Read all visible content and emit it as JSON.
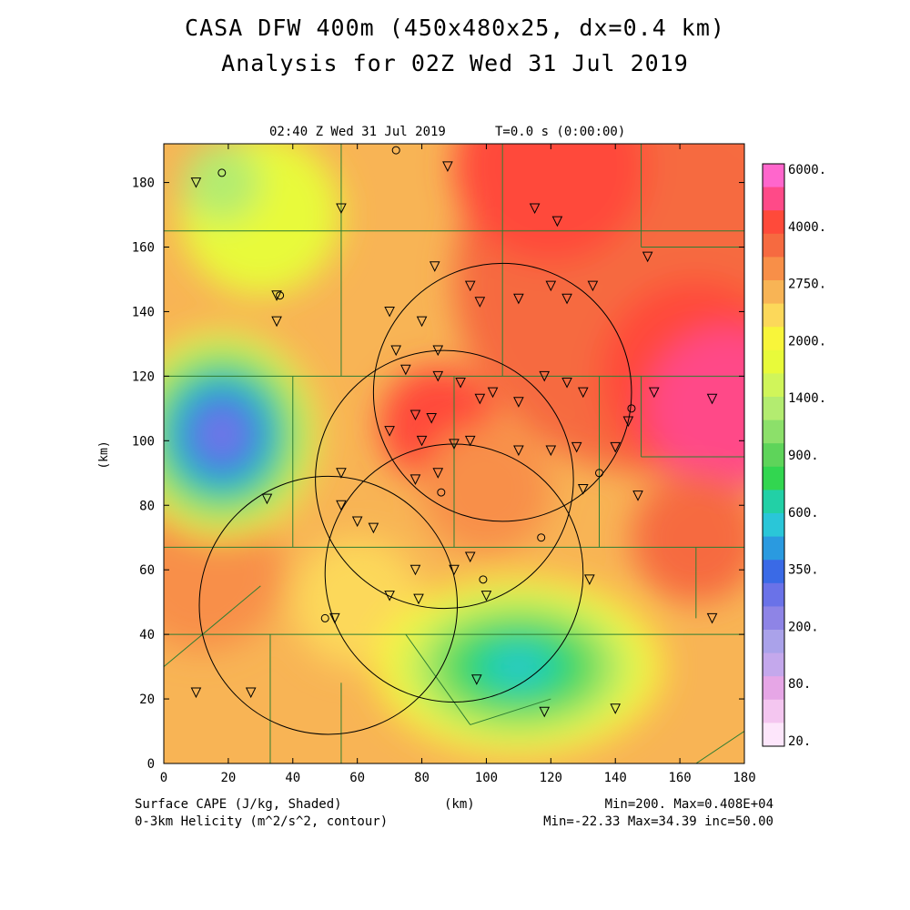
{
  "header": {
    "title_line1": "CASA DFW 400m (450x480x25, dx=0.4 km)",
    "title_line2": "Analysis for 02Z Wed 31 Jul 2019",
    "time_stamp": "02:40 Z Wed 31 Jul 2019",
    "model_time": "T=0.0 s (0:00:00)"
  },
  "footer": {
    "field1": "Surface CAPE (J/kg, Shaded)",
    "field2": "0-3km Helicity (m^2/s^2, contour)",
    "xunit": "(km)",
    "stats1": "Min=200. Max=0.408E+04",
    "stats2": "Min=-22.33 Max=34.39 inc=50.00"
  },
  "axes": {
    "x_ticks": [
      "0",
      "20",
      "40",
      "60",
      "80",
      "100",
      "120",
      "140",
      "160",
      "180"
    ],
    "y_ticks": [
      "0",
      "20",
      "40",
      "60",
      "80",
      "100",
      "120",
      "140",
      "160",
      "180"
    ],
    "ylabel": "(km)",
    "xlim": [
      0,
      180
    ],
    "ylim": [
      0,
      192
    ]
  },
  "colorbar": {
    "labels": [
      "6000.",
      "4000.",
      "2750.",
      "2000.",
      "1400.",
      "900.",
      "600.",
      "350.",
      "200.",
      "80.",
      "20."
    ],
    "colors": [
      "#ff66cc",
      "#ff4a88",
      "#ff4a3a",
      "#f66a40",
      "#f88f48",
      "#f8b455",
      "#fcd85a",
      "#f8f53a",
      "#e8fa3a",
      "#d0f55a",
      "#b3ec70",
      "#8ce06a",
      "#5ed45a",
      "#32d650",
      "#22d0a6",
      "#2ac6d8",
      "#2a9ae0",
      "#3a6ae6",
      "#6a72e8",
      "#8e84e6",
      "#aaa2ea",
      "#c4a8ec",
      "#e6a6e6",
      "#f4c6f0",
      "#fde6fb"
    ]
  },
  "radars": [
    {
      "cx": 105,
      "cy": 115
    },
    {
      "cx": 87,
      "cy": 88
    },
    {
      "cx": 90,
      "cy": 59
    },
    {
      "cx": 51,
      "cy": 49
    }
  ],
  "cape_field": {
    "base_color": "#f8b455",
    "blobs": [
      {
        "x": 150,
        "y": 150,
        "r": 60,
        "color": "#f66a40"
      },
      {
        "x": 165,
        "y": 120,
        "r": 30,
        "color": "#ff4a3a"
      },
      {
        "x": 175,
        "y": 110,
        "r": 25,
        "color": "#ff4a88"
      },
      {
        "x": 120,
        "y": 185,
        "r": 30,
        "color": "#ff4a3a"
      },
      {
        "x": 85,
        "y": 105,
        "r": 18,
        "color": "#ff4a3a"
      },
      {
        "x": 165,
        "y": 70,
        "r": 20,
        "color": "#f66a40"
      },
      {
        "x": 100,
        "y": 85,
        "r": 20,
        "color": "#f88f48"
      },
      {
        "x": 30,
        "y": 170,
        "r": 25,
        "color": "#e8fa3a"
      },
      {
        "x": 18,
        "y": 180,
        "r": 12,
        "color": "#b3ec70"
      },
      {
        "x": 12,
        "y": 60,
        "r": 25,
        "color": "#f88f48"
      },
      {
        "x": 60,
        "y": 50,
        "r": 20,
        "color": "#fcd85a"
      }
    ],
    "low_regions": [
      {
        "x": 110,
        "y": 30,
        "rx": 45,
        "ry": 28,
        "colors": [
          "#f8f53a",
          "#d0f55a",
          "#8ce06a",
          "#32d650",
          "#22d0a6",
          "#2ac6d8"
        ]
      },
      {
        "x": 18,
        "y": 102,
        "rx": 30,
        "ry": 32,
        "colors": [
          "#e8fa3a",
          "#b3ec70",
          "#5ed45a",
          "#22d0a6",
          "#2a9ae0",
          "#3a6ae6",
          "#6a72e8",
          "#8e84e6"
        ]
      }
    ]
  }
}
